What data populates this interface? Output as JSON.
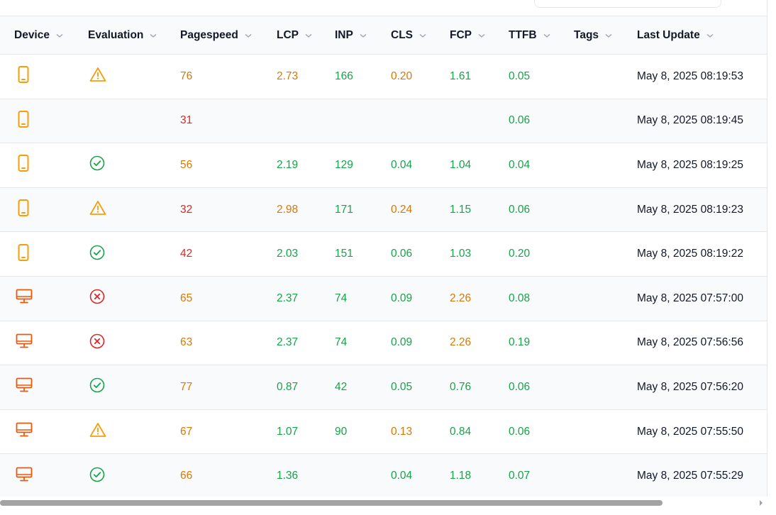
{
  "colors": {
    "good": "#16a34a",
    "warn": "#d97706",
    "bad": "#dc2626",
    "device": "#f59e0b",
    "device_desktop": "#ea580c"
  },
  "table": {
    "headers": [
      "Device",
      "Evaluation",
      "Pagespeed",
      "LCP",
      "INP",
      "CLS",
      "FCP",
      "TTFB",
      "Tags",
      "Last Update"
    ],
    "rows": [
      {
        "device": "mobile",
        "evaluation": "warning",
        "pagespeed": "76",
        "pagespeed_status": "warn",
        "lcp": "2.73",
        "lcp_status": "warn",
        "inp": "166",
        "inp_status": "good",
        "cls": "0.20",
        "cls_status": "warn",
        "fcp": "1.61",
        "fcp_status": "good",
        "ttfb": "0.05",
        "ttfb_status": "good",
        "tags": "",
        "updated": "May 8, 2025 08:19:53"
      },
      {
        "device": "mobile",
        "evaluation": "",
        "pagespeed": "31",
        "pagespeed_status": "bad",
        "lcp": "",
        "lcp_status": "",
        "inp": "",
        "inp_status": "",
        "cls": "",
        "cls_status": "",
        "fcp": "",
        "fcp_status": "",
        "ttfb": "0.06",
        "ttfb_status": "good",
        "tags": "",
        "updated": "May 8, 2025 08:19:45"
      },
      {
        "device": "mobile",
        "evaluation": "pass",
        "pagespeed": "56",
        "pagespeed_status": "warn",
        "lcp": "2.19",
        "lcp_status": "good",
        "inp": "129",
        "inp_status": "good",
        "cls": "0.04",
        "cls_status": "good",
        "fcp": "1.04",
        "fcp_status": "good",
        "ttfb": "0.04",
        "ttfb_status": "good",
        "tags": "",
        "updated": "May 8, 2025 08:19:25"
      },
      {
        "device": "mobile",
        "evaluation": "warning",
        "pagespeed": "32",
        "pagespeed_status": "bad",
        "lcp": "2.98",
        "lcp_status": "warn",
        "inp": "171",
        "inp_status": "good",
        "cls": "0.24",
        "cls_status": "warn",
        "fcp": "1.15",
        "fcp_status": "good",
        "ttfb": "0.06",
        "ttfb_status": "good",
        "tags": "",
        "updated": "May 8, 2025 08:19:23"
      },
      {
        "device": "mobile",
        "evaluation": "pass",
        "pagespeed": "42",
        "pagespeed_status": "bad",
        "lcp": "2.03",
        "lcp_status": "good",
        "inp": "151",
        "inp_status": "good",
        "cls": "0.06",
        "cls_status": "good",
        "fcp": "1.03",
        "fcp_status": "good",
        "ttfb": "0.20",
        "ttfb_status": "good",
        "tags": "",
        "updated": "May 8, 2025 08:19:22"
      },
      {
        "device": "desktop",
        "evaluation": "fail",
        "pagespeed": "65",
        "pagespeed_status": "warn",
        "lcp": "2.37",
        "lcp_status": "good",
        "inp": "74",
        "inp_status": "good",
        "cls": "0.09",
        "cls_status": "good",
        "fcp": "2.26",
        "fcp_status": "warn",
        "ttfb": "0.08",
        "ttfb_status": "good",
        "tags": "",
        "updated": "May 8, 2025 07:57:00"
      },
      {
        "device": "desktop",
        "evaluation": "fail",
        "pagespeed": "63",
        "pagespeed_status": "warn",
        "lcp": "2.37",
        "lcp_status": "good",
        "inp": "74",
        "inp_status": "good",
        "cls": "0.09",
        "cls_status": "good",
        "fcp": "2.26",
        "fcp_status": "warn",
        "ttfb": "0.19",
        "ttfb_status": "good",
        "tags": "",
        "updated": "May 8, 2025 07:56:56"
      },
      {
        "device": "desktop",
        "evaluation": "pass",
        "pagespeed": "77",
        "pagespeed_status": "warn",
        "lcp": "0.87",
        "lcp_status": "good",
        "inp": "42",
        "inp_status": "good",
        "cls": "0.05",
        "cls_status": "good",
        "fcp": "0.76",
        "fcp_status": "good",
        "ttfb": "0.06",
        "ttfb_status": "good",
        "tags": "",
        "updated": "May 8, 2025 07:56:20"
      },
      {
        "device": "desktop",
        "evaluation": "warning",
        "pagespeed": "67",
        "pagespeed_status": "warn",
        "lcp": "1.07",
        "lcp_status": "good",
        "inp": "90",
        "inp_status": "good",
        "cls": "0.13",
        "cls_status": "warn",
        "fcp": "0.84",
        "fcp_status": "good",
        "ttfb": "0.06",
        "ttfb_status": "good",
        "tags": "",
        "updated": "May 8, 2025 07:55:50"
      },
      {
        "device": "desktop",
        "evaluation": "pass",
        "pagespeed": "66",
        "pagespeed_status": "warn",
        "lcp": "1.36",
        "lcp_status": "good",
        "inp": "",
        "inp_status": "",
        "cls": "0.04",
        "cls_status": "good",
        "fcp": "1.18",
        "fcp_status": "good",
        "ttfb": "0.07",
        "ttfb_status": "good",
        "tags": "",
        "updated": "May 8, 2025 07:55:29"
      }
    ]
  }
}
